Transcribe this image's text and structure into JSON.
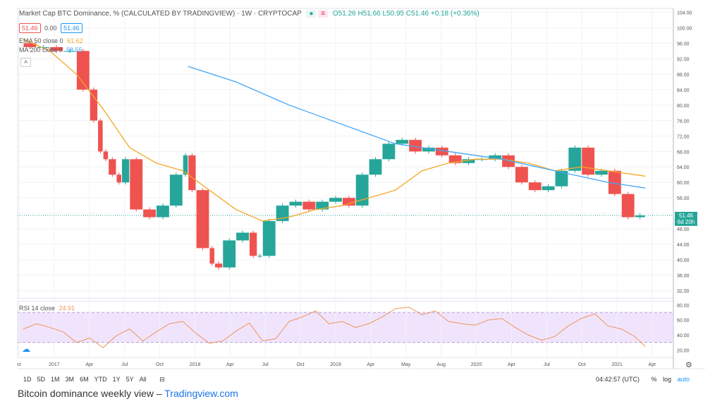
{
  "header": {
    "title": "Market Cap BTC Dominance, % (CALCULATED BY TRADINGVIEW) · 1W · CRYPTOCAP",
    "ohlc": "O51.26  H51.66  L50.95  C51.46  +0.18 (+0.36%)",
    "price_box_1": "51.46",
    "price_box_2": "0.00",
    "price_box_3": "51.46"
  },
  "indicators": {
    "ema_label": "EMA 50 close 0",
    "ema_value": "61.62",
    "ma_label": "MA 200 close 0",
    "ma_value": "58.55",
    "rsi_label": "RSI 14 close",
    "rsi_value": "24.91"
  },
  "price_tag": {
    "value": "51.46",
    "countdown": "6d 20h"
  },
  "bottom_bar": {
    "ranges": [
      "1D",
      "5D",
      "1M",
      "3M",
      "6M",
      "YTD",
      "1Y",
      "5Y",
      "All"
    ],
    "time": "04:42:57 (UTC)",
    "percent": "%",
    "log": "log",
    "auto": "auto"
  },
  "caption": {
    "text": "Bitcoin dominance weekly view – ",
    "link": "Tradingview.com"
  },
  "colors": {
    "up": "#26a69a",
    "down": "#ef5350",
    "ema": "#f5a623",
    "ma": "#42a5f5",
    "rsi": "#f0925a",
    "rsi_band": "#e9d8fb"
  },
  "chart_data": {
    "type": "line",
    "y_axis": {
      "ticks": [
        "104.00",
        "100.00",
        "96.00",
        "92.00",
        "88.00",
        "84.00",
        "80.00",
        "76.00",
        "72.00",
        "68.00",
        "64.00",
        "60.00",
        "56.00",
        "52.00",
        "48.00",
        "44.00",
        "40.00",
        "36.00",
        "32.00"
      ],
      "range": [
        30,
        105
      ]
    },
    "rsi_axis": {
      "ticks": [
        "80.00",
        "60.00",
        "40.00",
        "20.00"
      ],
      "range": [
        10,
        85
      ],
      "band": [
        30,
        70
      ]
    },
    "x_axis": {
      "ticks": [
        "ct",
        "2017",
        "Apr",
        "Jul",
        "Oct",
        "2018",
        "Apr",
        "Jul",
        "Oct",
        "2019",
        "Apr",
        "May",
        "Aug",
        "2020",
        "Apr",
        "Jul",
        "Oct",
        "2021",
        "Apr"
      ],
      "range_weeks": [
        0,
        235
      ]
    },
    "price_series": {
      "name": "BTC Dominance close",
      "x_weeks": [
        0,
        5,
        10,
        15,
        20,
        25,
        28,
        30,
        32,
        35,
        37,
        40,
        45,
        50,
        55,
        60,
        62,
        65,
        70,
        72,
        75,
        80,
        85,
        88,
        90,
        95,
        100,
        105,
        110,
        115,
        120,
        125,
        130,
        135,
        140,
        145,
        150,
        155,
        160,
        165,
        170,
        175,
        180,
        185,
        190,
        195,
        200,
        205,
        210,
        215,
        220,
        225,
        230,
        234
      ],
      "values": [
        96,
        95,
        95,
        94,
        94,
        84,
        76,
        68,
        66,
        62,
        60,
        66,
        53,
        51,
        54,
        62,
        67,
        58,
        43,
        39,
        38,
        45,
        47,
        41,
        41,
        50,
        54,
        55,
        53,
        55,
        56,
        54,
        62,
        66,
        70,
        71,
        68,
        69,
        67,
        65,
        66,
        66,
        67,
        64,
        60,
        58,
        59,
        63,
        69,
        62,
        63,
        57,
        51,
        51.46
      ]
    },
    "ema50": {
      "name": "EMA 50",
      "x_weeks": [
        0,
        10,
        20,
        30,
        40,
        50,
        60,
        70,
        80,
        90,
        100,
        110,
        120,
        130,
        140,
        150,
        160,
        170,
        180,
        190,
        200,
        210,
        220,
        230,
        234
      ],
      "values": [
        97,
        94,
        88,
        79,
        69,
        65,
        63,
        58,
        53,
        50,
        51,
        53,
        54,
        56,
        58,
        63,
        65,
        66,
        66,
        65,
        63,
        64,
        63,
        62,
        61.62
      ]
    },
    "ma200": {
      "name": "MA 200",
      "x_weeks": [
        62,
        80,
        100,
        120,
        140,
        160,
        180,
        200,
        220,
        234
      ],
      "values": [
        90,
        86,
        80,
        75,
        70,
        68,
        66,
        63,
        60,
        58.55
      ]
    },
    "rsi": {
      "name": "RSI 14",
      "x_weeks": [
        0,
        5,
        10,
        15,
        20,
        25,
        30,
        35,
        40,
        45,
        50,
        55,
        60,
        65,
        70,
        75,
        80,
        85,
        90,
        95,
        100,
        105,
        110,
        115,
        120,
        125,
        130,
        135,
        140,
        145,
        150,
        155,
        160,
        165,
        170,
        175,
        180,
        185,
        190,
        195,
        200,
        205,
        210,
        215,
        220,
        225,
        230,
        234
      ],
      "values": [
        48,
        55,
        50,
        44,
        30,
        36,
        23,
        39,
        48,
        32,
        44,
        55,
        58,
        42,
        29,
        32,
        45,
        56,
        32,
        35,
        58,
        64,
        72,
        55,
        58,
        50,
        55,
        64,
        75,
        77,
        67,
        72,
        58,
        55,
        53,
        60,
        62,
        50,
        40,
        33,
        38,
        52,
        62,
        68,
        52,
        48,
        38,
        24.91
      ]
    }
  }
}
